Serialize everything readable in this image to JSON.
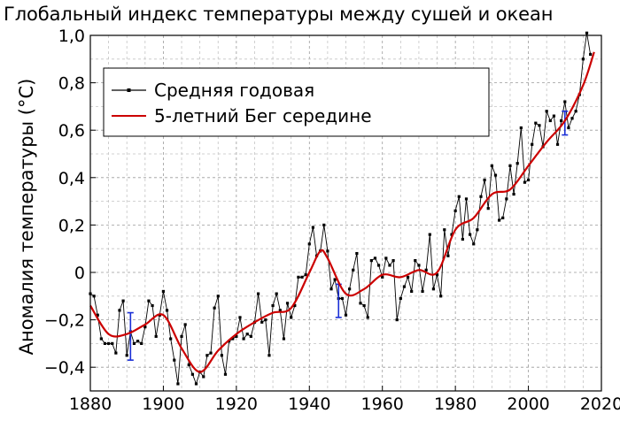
{
  "chart_data": {
    "type": "line",
    "title": "Глобальный индекс температуры между сушей и океан",
    "xlabel": "",
    "ylabel": "Аномалия температуры (°C)",
    "xlim": [
      1880,
      2020
    ],
    "ylim": [
      -0.5,
      1.0
    ],
    "x_ticks": [
      1880,
      1900,
      1920,
      1940,
      1960,
      1980,
      2000,
      2020
    ],
    "y_ticks": [
      -0.4,
      -0.2,
      0,
      0.2,
      0.4,
      0.6,
      0.8,
      1.0
    ],
    "y_tick_labels": [
      "−0,4",
      "−0,2",
      "0",
      "0,2",
      "0,4",
      "0,6",
      "0,8",
      "1,0"
    ],
    "grid": true,
    "legend_position": "top-left",
    "series": [
      {
        "name": "Средняя годовая",
        "color": "#000000",
        "marker": "square",
        "x": [
          1880,
          1881,
          1882,
          1883,
          1884,
          1885,
          1886,
          1887,
          1888,
          1889,
          1890,
          1891,
          1892,
          1893,
          1894,
          1895,
          1896,
          1897,
          1898,
          1899,
          1900,
          1901,
          1902,
          1903,
          1904,
          1905,
          1906,
          1907,
          1908,
          1909,
          1910,
          1911,
          1912,
          1913,
          1914,
          1915,
          1916,
          1917,
          1918,
          1919,
          1920,
          1921,
          1922,
          1923,
          1924,
          1925,
          1926,
          1927,
          1928,
          1929,
          1930,
          1931,
          1932,
          1933,
          1934,
          1935,
          1936,
          1937,
          1938,
          1939,
          1940,
          1941,
          1942,
          1943,
          1944,
          1945,
          1946,
          1947,
          1948,
          1949,
          1950,
          1951,
          1952,
          1953,
          1954,
          1955,
          1956,
          1957,
          1958,
          1959,
          1960,
          1961,
          1962,
          1963,
          1964,
          1965,
          1966,
          1967,
          1968,
          1969,
          1970,
          1971,
          1972,
          1973,
          1974,
          1975,
          1976,
          1977,
          1978,
          1979,
          1980,
          1981,
          1982,
          1983,
          1984,
          1985,
          1986,
          1987,
          1988,
          1989,
          1990,
          1991,
          1992,
          1993,
          1994,
          1995,
          1996,
          1997,
          1998,
          1999,
          2000,
          2001,
          2002,
          2003,
          2004,
          2005,
          2006,
          2007,
          2008,
          2009,
          2010,
          2011,
          2012,
          2013,
          2014,
          2015,
          2016,
          2017
        ],
        "y": [
          -0.09,
          -0.1,
          -0.18,
          -0.28,
          -0.3,
          -0.3,
          -0.3,
          -0.34,
          -0.16,
          -0.12,
          -0.35,
          -0.25,
          -0.3,
          -0.29,
          -0.3,
          -0.23,
          -0.12,
          -0.14,
          -0.27,
          -0.18,
          -0.08,
          -0.16,
          -0.28,
          -0.37,
          -0.47,
          -0.27,
          -0.22,
          -0.39,
          -0.43,
          -0.47,
          -0.42,
          -0.44,
          -0.35,
          -0.34,
          -0.15,
          -0.1,
          -0.35,
          -0.43,
          -0.29,
          -0.28,
          -0.27,
          -0.19,
          -0.28,
          -0.26,
          -0.27,
          -0.21,
          -0.09,
          -0.21,
          -0.2,
          -0.35,
          -0.14,
          -0.09,
          -0.16,
          -0.28,
          -0.13,
          -0.19,
          -0.14,
          -0.02,
          -0.02,
          -0.01,
          0.12,
          0.19,
          0.07,
          0.09,
          0.2,
          0.09,
          -0.07,
          -0.03,
          -0.11,
          -0.11,
          -0.18,
          -0.07,
          0.01,
          0.08,
          -0.13,
          -0.14,
          -0.19,
          0.05,
          0.06,
          0.03,
          -0.02,
          0.06,
          0.03,
          0.05,
          -0.2,
          -0.11,
          -0.06,
          -0.02,
          -0.08,
          0.05,
          0.03,
          -0.08,
          0.01,
          0.16,
          -0.07,
          -0.01,
          -0.1,
          0.18,
          0.07,
          0.16,
          0.26,
          0.32,
          0.14,
          0.31,
          0.16,
          0.12,
          0.18,
          0.32,
          0.39,
          0.27,
          0.45,
          0.41,
          0.22,
          0.23,
          0.31,
          0.45,
          0.33,
          0.46,
          0.61,
          0.38,
          0.39,
          0.54,
          0.63,
          0.62,
          0.53,
          0.68,
          0.64,
          0.66,
          0.54,
          0.64,
          0.72,
          0.61,
          0.65,
          0.68,
          0.75,
          0.9,
          1.01,
          0.92
        ],
        "error_bars": [
          {
            "x": 1891,
            "low": -0.37,
            "high": -0.17
          },
          {
            "x": 1948,
            "low": -0.19,
            "high": -0.05
          },
          {
            "x": 2010,
            "low": 0.58,
            "high": 0.68
          }
        ]
      },
      {
        "name": "5-летний Бег середине",
        "color": "#cc0000",
        "x": [
          1880,
          1885,
          1890,
          1895,
          1900,
          1905,
          1910,
          1915,
          1920,
          1925,
          1930,
          1935,
          1940,
          1943,
          1945,
          1950,
          1955,
          1960,
          1965,
          1970,
          1975,
          1980,
          1985,
          1990,
          1995,
          2000,
          2005,
          2010,
          2015,
          2018
        ],
        "y": [
          -0.14,
          -0.26,
          -0.26,
          -0.22,
          -0.18,
          -0.32,
          -0.42,
          -0.33,
          -0.26,
          -0.21,
          -0.17,
          -0.15,
          0.0,
          0.09,
          0.06,
          -0.09,
          -0.07,
          -0.01,
          -0.02,
          0.01,
          0.0,
          0.18,
          0.23,
          0.33,
          0.35,
          0.45,
          0.55,
          0.64,
          0.79,
          0.93
        ]
      }
    ]
  }
}
